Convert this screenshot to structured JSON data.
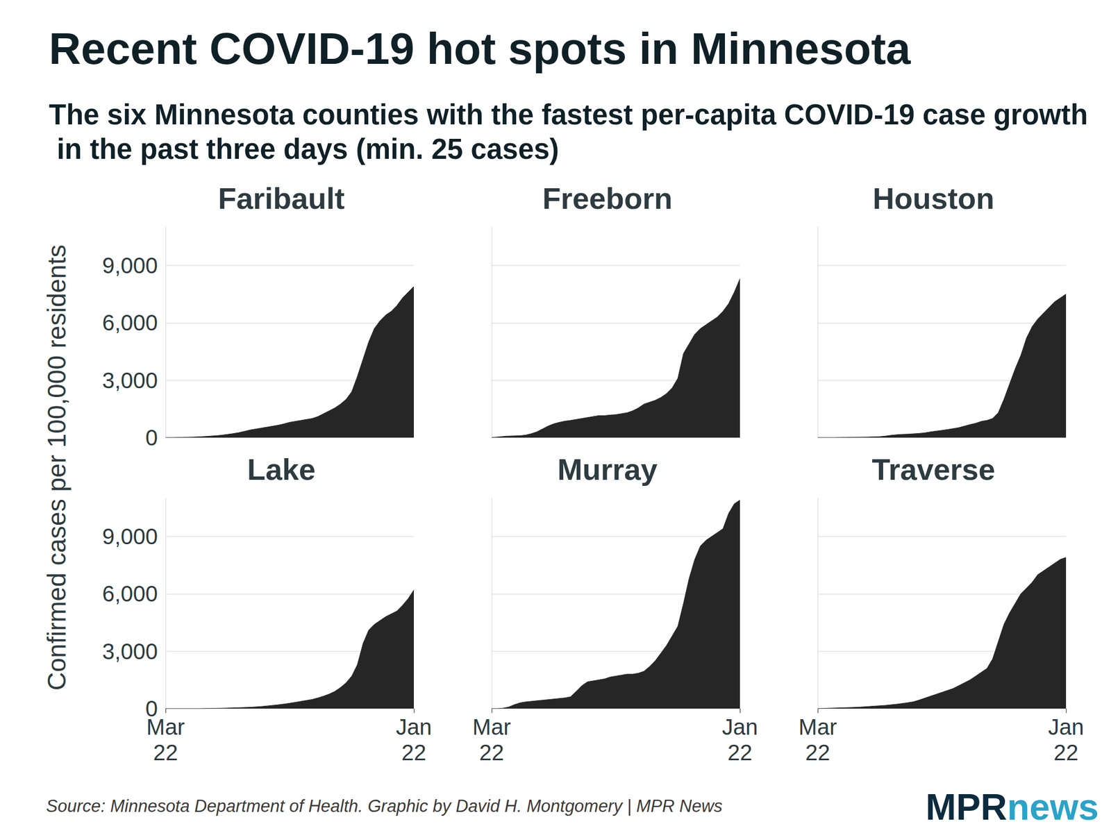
{
  "chart_data": {
    "type": "area",
    "title": "Recent COVID-19 hot spots in Minnesota",
    "subtitle": "The six Minnesota counties with the fastest per-capita COVID-19 case growth in the past three days (min. 25 cases)",
    "y_label": "Confirmed cases per 100,000 residents",
    "source": "Source: Minnesota Department of Health. Graphic by David H. Montgomery | MPR News",
    "logo": [
      "MPR",
      "news"
    ],
    "categories": [
      "Mar 22",
      null,
      null,
      null,
      null,
      null,
      null,
      null,
      null,
      null,
      null,
      null,
      null,
      null,
      null,
      null,
      null,
      null,
      null,
      null,
      null,
      null,
      null,
      null,
      null,
      null,
      null,
      null,
      null,
      null,
      null,
      null,
      null,
      null,
      null,
      null,
      null,
      null,
      null,
      null,
      null,
      null,
      null,
      null,
      "Jan 22"
    ],
    "series": [
      {
        "name": "Faribault",
        "color": "#262626",
        "values": [
          0,
          0,
          5,
          10,
          20,
          30,
          40,
          60,
          80,
          100,
          130,
          170,
          210,
          260,
          330,
          400,
          450,
          500,
          550,
          600,
          650,
          720,
          800,
          850,
          900,
          950,
          1000,
          1100,
          1250,
          1400,
          1550,
          1750,
          2000,
          2400,
          3200,
          4100,
          5000,
          5700,
          6100,
          6400,
          6600,
          6900,
          7300,
          7600,
          7900
        ]
      },
      {
        "name": "Freeborn",
        "color": "#262626",
        "values": [
          0,
          30,
          60,
          80,
          90,
          100,
          130,
          200,
          300,
          450,
          600,
          720,
          800,
          860,
          900,
          950,
          1000,
          1050,
          1100,
          1150,
          1150,
          1180,
          1200,
          1250,
          1300,
          1400,
          1550,
          1750,
          1850,
          1950,
          2100,
          2300,
          2600,
          3100,
          4400,
          4900,
          5400,
          5700,
          5900,
          6100,
          6300,
          6600,
          7000,
          7600,
          8300
        ]
      },
      {
        "name": "Houston",
        "color": "#262626",
        "values": [
          0,
          0,
          0,
          0,
          5,
          10,
          15,
          20,
          25,
          30,
          40,
          50,
          80,
          120,
          150,
          170,
          180,
          200,
          220,
          250,
          300,
          340,
          380,
          420,
          470,
          520,
          600,
          680,
          750,
          850,
          900,
          1000,
          1300,
          2000,
          2800,
          3600,
          4300,
          5200,
          5800,
          6200,
          6500,
          6800,
          7100,
          7300,
          7500
        ]
      },
      {
        "name": "Lake",
        "color": "#262626",
        "values": [
          0,
          0,
          0,
          0,
          0,
          0,
          0,
          5,
          10,
          15,
          20,
          30,
          40,
          50,
          60,
          70,
          90,
          110,
          140,
          170,
          200,
          240,
          280,
          330,
          380,
          430,
          480,
          560,
          650,
          760,
          900,
          1100,
          1350,
          1700,
          2300,
          3400,
          4100,
          4400,
          4600,
          4800,
          4950,
          5100,
          5400,
          5750,
          6200
        ]
      },
      {
        "name": "Murray",
        "color": "#262626",
        "values": [
          0,
          0,
          20,
          80,
          200,
          300,
          350,
          380,
          410,
          440,
          470,
          500,
          530,
          560,
          620,
          900,
          1200,
          1400,
          1450,
          1500,
          1550,
          1650,
          1700,
          1750,
          1800,
          1800,
          1850,
          1950,
          2200,
          2500,
          2900,
          3300,
          3800,
          4300,
          5500,
          6800,
          7800,
          8500,
          8800,
          9000,
          9200,
          9400,
          10200,
          10700,
          10900
        ]
      },
      {
        "name": "Traverse",
        "color": "#262626",
        "values": [
          0,
          10,
          20,
          30,
          40,
          50,
          60,
          70,
          90,
          110,
          130,
          150,
          170,
          200,
          230,
          270,
          310,
          360,
          450,
          550,
          650,
          750,
          850,
          950,
          1050,
          1200,
          1350,
          1500,
          1700,
          1900,
          2100,
          2600,
          3500,
          4400,
          5000,
          5500,
          6000,
          6300,
          6600,
          7000,
          7200,
          7400,
          7600,
          7800,
          7900
        ]
      }
    ],
    "ylim": [
      0,
      11000
    ],
    "yticks": [
      0,
      {
        "value": 3000,
        "label": "3,000"
      },
      {
        "value": 6000,
        "label": "6,000"
      },
      {
        "value": 9000,
        "label": "9,000"
      }
    ],
    "grid": true
  }
}
